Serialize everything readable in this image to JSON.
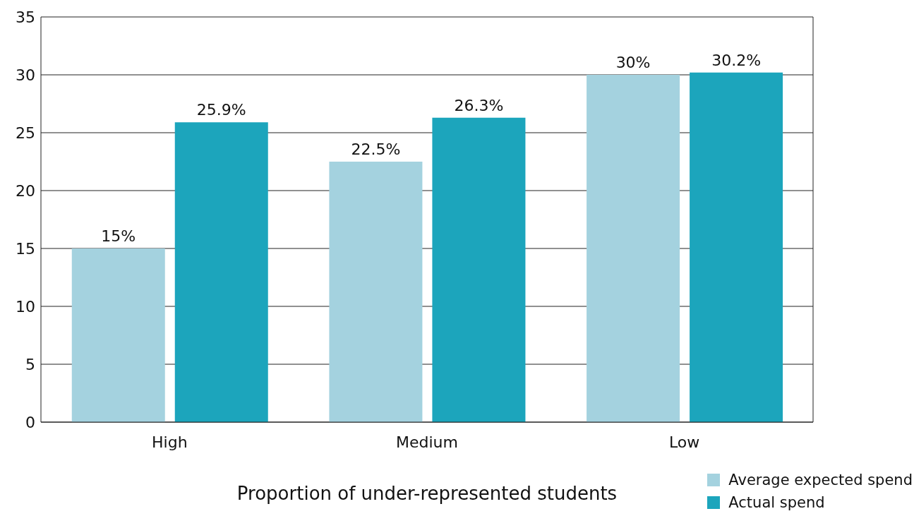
{
  "chart_data": {
    "type": "bar",
    "xlabel": "Proportion of under-represented students",
    "categories": [
      "High",
      "Medium",
      "Low"
    ],
    "series": [
      {
        "name": "Average expected spend",
        "color": "#a4d2df",
        "values": [
          15,
          22.5,
          30
        ],
        "value_labels": [
          "15%",
          "22.5%",
          "30%"
        ]
      },
      {
        "name": "Actual spend",
        "color": "#1ca5bc",
        "values": [
          25.9,
          26.3,
          30.2
        ],
        "value_labels": [
          "25.9%",
          "26.3%",
          "30.2%"
        ]
      }
    ],
    "ylim": [
      0,
      35
    ],
    "yticks": [
      0,
      5,
      10,
      15,
      20,
      25,
      30,
      35
    ],
    "grid": "y",
    "legend": "bottom right"
  }
}
